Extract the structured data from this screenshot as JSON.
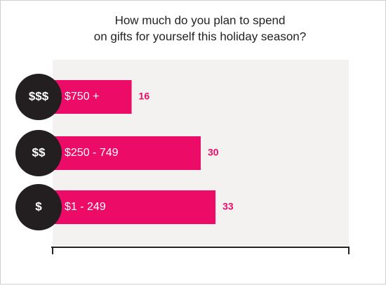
{
  "chart_data": {
    "type": "bar",
    "orientation": "horizontal",
    "title": [
      "How much do you plan to spend",
      "on gifts for yourself this holiday season?"
    ],
    "categories": [
      "$750 +",
      "$250 - 749",
      "$1 - 249"
    ],
    "icons": [
      "$$$",
      "$$",
      "$"
    ],
    "values": [
      16,
      30,
      33
    ],
    "color": "#ec0b66",
    "xlim": [
      0,
      60
    ]
  }
}
